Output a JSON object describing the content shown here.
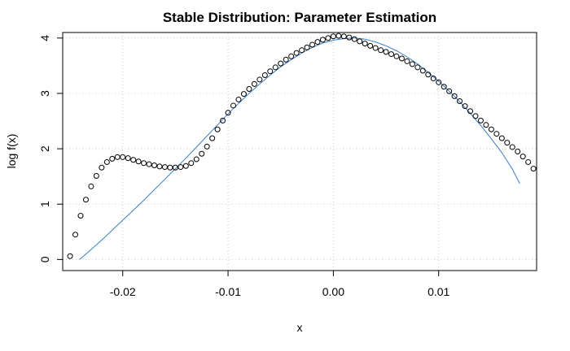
{
  "chart_data": {
    "type": "scatter",
    "title": "Stable Distribution: Parameter Estimation",
    "xlabel": "x",
    "ylabel": "log f(x)",
    "xlim": [
      -0.0257,
      0.0193
    ],
    "ylim": [
      -0.2,
      4.1
    ],
    "grid": true,
    "x_ticks": [
      -0.02,
      -0.01,
      0.0,
      0.01
    ],
    "x_tick_labels": [
      "-0.02",
      "-0.01",
      "0.00",
      "0.01"
    ],
    "y_ticks": [
      0,
      1,
      2,
      3,
      4
    ],
    "y_tick_labels": [
      "0",
      "1",
      "2",
      "3",
      "4"
    ],
    "colors": {
      "points": "#000000",
      "fit_line": "#3a7fc4",
      "grid": "#c8c8c8"
    },
    "series": [
      {
        "kind": "points",
        "x": [
          -0.025,
          -0.0245,
          -0.024,
          -0.0235,
          -0.023,
          -0.0225,
          -0.022,
          -0.0215,
          -0.021,
          -0.0205,
          -0.02,
          -0.0195,
          -0.019,
          -0.0185,
          -0.018,
          -0.0175,
          -0.017,
          -0.0165,
          -0.016,
          -0.0155,
          -0.015,
          -0.0145,
          -0.014,
          -0.0135,
          -0.013,
          -0.0125,
          -0.012,
          -0.0115,
          -0.011,
          -0.0105,
          -0.01,
          -0.0095,
          -0.009,
          -0.0085,
          -0.008,
          -0.0075,
          -0.007,
          -0.0065,
          -0.006,
          -0.0055,
          -0.005,
          -0.0045,
          -0.004,
          -0.0035,
          -0.003,
          -0.0025,
          -0.002,
          -0.0015,
          -0.001,
          -0.0005,
          0.0,
          0.0005,
          0.001,
          0.0015,
          0.002,
          0.0025,
          0.003,
          0.0035,
          0.004,
          0.0045,
          0.005,
          0.0055,
          0.006,
          0.0065,
          0.007,
          0.0075,
          0.008,
          0.0085,
          0.009,
          0.0095,
          0.01,
          0.0105,
          0.011,
          0.0115,
          0.012,
          0.0125,
          0.013,
          0.0135,
          0.014,
          0.0145,
          0.015,
          0.0155,
          0.016,
          0.0165,
          0.017,
          0.0175,
          0.018,
          0.0185,
          0.019
        ],
        "y": [
          0.06,
          0.45,
          0.79,
          1.08,
          1.32,
          1.51,
          1.66,
          1.76,
          1.82,
          1.85,
          1.85,
          1.83,
          1.8,
          1.77,
          1.74,
          1.72,
          1.7,
          1.68,
          1.67,
          1.66,
          1.66,
          1.67,
          1.69,
          1.74,
          1.81,
          1.91,
          2.04,
          2.19,
          2.35,
          2.51,
          2.65,
          2.78,
          2.89,
          2.99,
          3.08,
          3.17,
          3.25,
          3.33,
          3.4,
          3.47,
          3.54,
          3.61,
          3.67,
          3.73,
          3.78,
          3.83,
          3.88,
          3.93,
          3.97,
          4.0,
          4.03,
          4.04,
          4.03,
          4.01,
          3.98,
          3.94,
          3.9,
          3.86,
          3.82,
          3.78,
          3.75,
          3.71,
          3.67,
          3.63,
          3.58,
          3.53,
          3.47,
          3.41,
          3.34,
          3.27,
          3.2,
          3.12,
          3.04,
          2.95,
          2.86,
          2.77,
          2.68,
          2.59,
          2.51,
          2.43,
          2.35,
          2.27,
          2.19,
          2.11,
          2.03,
          1.95,
          1.86,
          1.76,
          1.64
        ]
      },
      {
        "kind": "line",
        "x": [
          -0.0241,
          -0.023,
          -0.022,
          -0.021,
          -0.02,
          -0.019,
          -0.018,
          -0.017,
          -0.016,
          -0.015,
          -0.014,
          -0.013,
          -0.012,
          -0.011,
          -0.01,
          -0.009,
          -0.008,
          -0.007,
          -0.006,
          -0.005,
          -0.004,
          -0.003,
          -0.002,
          -0.001,
          0.0,
          0.001,
          0.002,
          0.003,
          0.004,
          0.005,
          0.006,
          0.007,
          0.008,
          0.009,
          0.01,
          0.011,
          0.012,
          0.013,
          0.014,
          0.015,
          0.016,
          0.017,
          0.0177
        ],
        "y": [
          0.0,
          0.18,
          0.35,
          0.53,
          0.71,
          0.89,
          1.07,
          1.26,
          1.45,
          1.64,
          1.83,
          2.03,
          2.23,
          2.43,
          2.63,
          2.82,
          3.0,
          3.17,
          3.33,
          3.48,
          3.61,
          3.73,
          3.83,
          3.91,
          3.96,
          3.99,
          4.0,
          3.98,
          3.93,
          3.86,
          3.77,
          3.66,
          3.53,
          3.38,
          3.22,
          3.04,
          2.85,
          2.64,
          2.42,
          2.18,
          1.93,
          1.63,
          1.37
        ]
      }
    ]
  }
}
